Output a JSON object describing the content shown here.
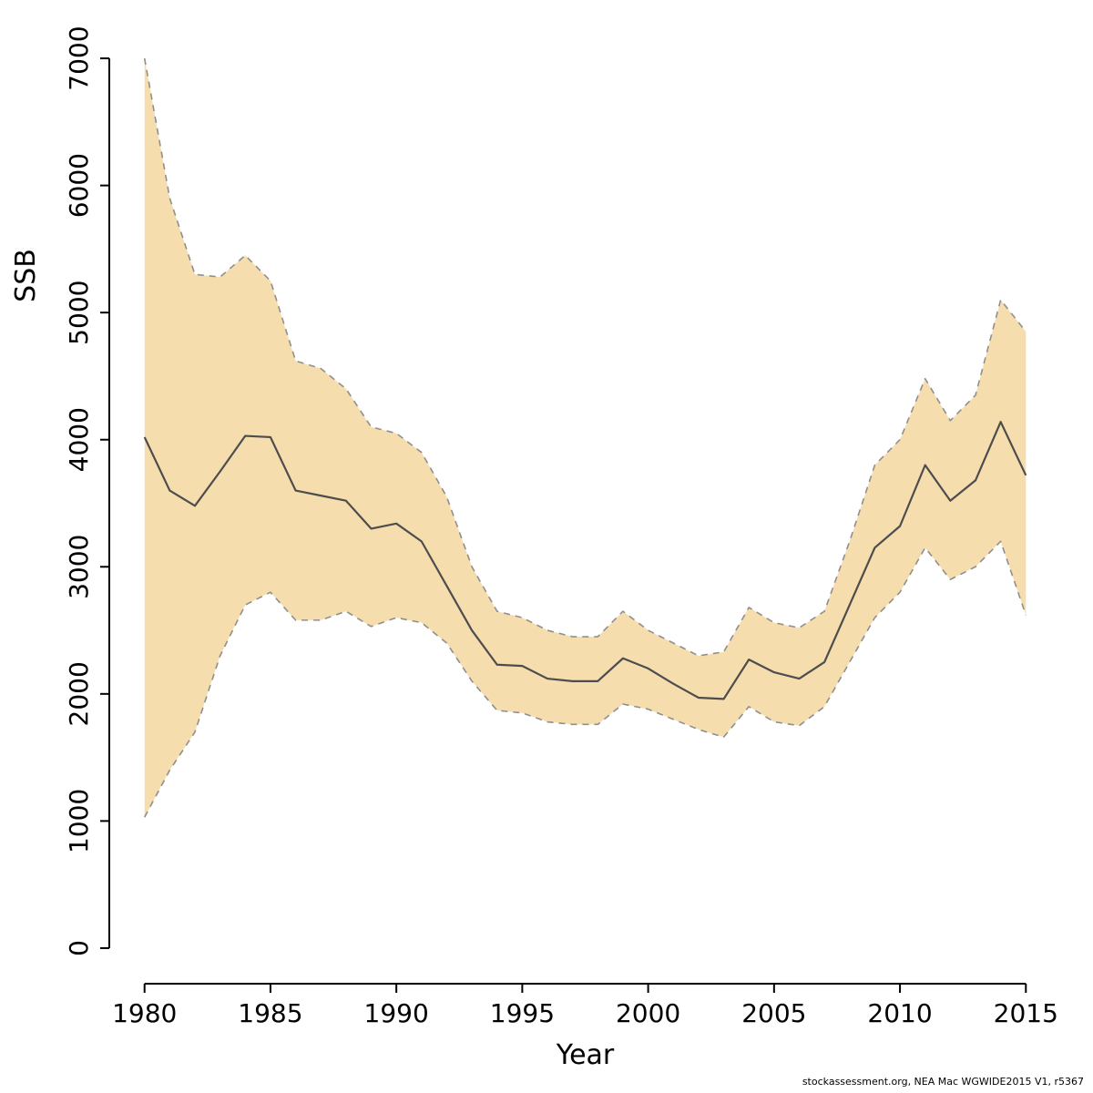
{
  "footer": {
    "credit": "stockassessment.org, NEA Mac WGWIDE2015 V1, r5367"
  },
  "chart_data": {
    "type": "line",
    "title": "",
    "xlabel": "Year",
    "ylabel": "SSB",
    "xlim": [
      1980,
      2015
    ],
    "ylim": [
      0,
      7000
    ],
    "x_ticks": [
      1980,
      1985,
      1990,
      1995,
      2000,
      2005,
      2010,
      2015
    ],
    "y_ticks": [
      0,
      1000,
      2000,
      3000,
      4000,
      5000,
      6000,
      7000
    ],
    "grid": false,
    "legend": "none",
    "colors": {
      "band_fill": "#f5ddae",
      "band_edge": "#8f8f8f",
      "median_line": "#4d4d4d",
      "axis": "#000000"
    },
    "x": [
      1980,
      1981,
      1982,
      1983,
      1984,
      1985,
      1986,
      1987,
      1988,
      1989,
      1990,
      1991,
      1992,
      1993,
      1994,
      1995,
      1996,
      1997,
      1998,
      1999,
      2000,
      2001,
      2002,
      2003,
      2004,
      2005,
      2006,
      2007,
      2008,
      2009,
      2010,
      2011,
      2012,
      2013,
      2014,
      2015
    ],
    "series": [
      {
        "name": "SSB median",
        "style": "solid",
        "values": [
          4020,
          3600,
          3480,
          3750,
          4030,
          4020,
          3600,
          3560,
          3520,
          3300,
          3340,
          3200,
          2850,
          2500,
          2230,
          2220,
          2120,
          2100,
          2100,
          2280,
          2200,
          2080,
          1970,
          1960,
          2270,
          2170,
          2120,
          2250,
          2700,
          3150,
          3320,
          3800,
          3520,
          3680,
          4140,
          3720
        ]
      },
      {
        "name": "upper confidence bound",
        "style": "dashed",
        "values": [
          7000,
          5900,
          5300,
          5280,
          5450,
          5250,
          4620,
          4560,
          4400,
          4100,
          4050,
          3900,
          3550,
          3000,
          2650,
          2600,
          2500,
          2450,
          2450,
          2650,
          2500,
          2400,
          2300,
          2330,
          2680,
          2560,
          2520,
          2650,
          3200,
          3800,
          4000,
          4480,
          4150,
          4350,
          5100,
          4850
        ]
      },
      {
        "name": "lower confidence bound",
        "style": "dashed",
        "values": [
          1030,
          1400,
          1700,
          2300,
          2700,
          2800,
          2580,
          2580,
          2650,
          2530,
          2600,
          2560,
          2400,
          2100,
          1870,
          1850,
          1780,
          1760,
          1760,
          1920,
          1880,
          1800,
          1720,
          1660,
          1900,
          1780,
          1750,
          1900,
          2250,
          2600,
          2800,
          3150,
          2900,
          3000,
          3200,
          2620
        ]
      }
    ]
  }
}
